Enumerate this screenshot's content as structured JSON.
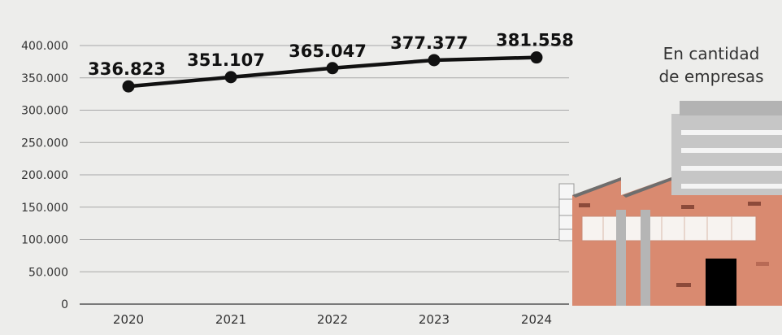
{
  "chart_data": {
    "type": "line",
    "x": [
      "2020",
      "2021",
      "2022",
      "2023",
      "2024"
    ],
    "series": [
      {
        "values": [
          336823,
          351107,
          365047,
          377377,
          381558
        ]
      }
    ],
    "data_labels": [
      "336.823",
      "351.107",
      "365.047",
      "377.377",
      "381.558"
    ],
    "y_ticks": [
      "0",
      "50.000",
      "100.000",
      "150.000",
      "200.000",
      "250.000",
      "300.000",
      "350.000",
      "400.000"
    ],
    "y_tick_values": [
      0,
      50000,
      100000,
      150000,
      200000,
      250000,
      300000,
      350000,
      400000
    ],
    "ylim": [
      0,
      400000
    ],
    "grid": true,
    "legend_note_lines": [
      "En cantidad",
      "de empresas"
    ],
    "colors": {
      "background": "#ededeb",
      "line": "#111111",
      "grid": "#a8a8a8",
      "building_wall": "#d98a70",
      "building_dark": "#b85c45",
      "office_tower": "#bdbdbd",
      "door": "#000000"
    }
  }
}
